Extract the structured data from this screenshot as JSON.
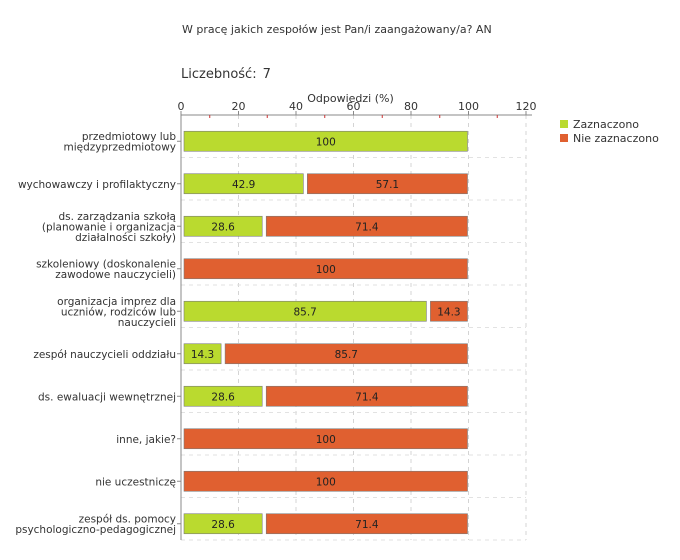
{
  "header": {
    "title": "W pracę jakich zespołów jest Pan/i zaangażowany/a? AN",
    "count_label": "Liczebność:",
    "count_value": "7"
  },
  "chart_data": {
    "type": "bar",
    "orientation": "horizontal",
    "stacked": true,
    "xlabel": "Odpowiedzi (%)",
    "xlim": [
      0,
      120
    ],
    "xticks": [
      0,
      20,
      40,
      60,
      80,
      100,
      120
    ],
    "grid": true,
    "legend_position": "top-right",
    "categories": [
      "przedmiotowy lub\nmiędzyprzedmiotowy",
      "wychowawczy i profilaktyczny",
      "ds. zarządzania szkołą\n(planowanie i organizacja\ndziałalności szkoły)",
      "szkoleniowy (doskonalenie\nzawodowe nauczycieli)",
      "organizacja imprez dla\nuczniów, rodziców lub\nnauczycieli",
      "zespół nauczycieli oddziału",
      "ds. ewaluacji wewnętrznej",
      "inne, jakie?",
      "nie uczestniczę",
      "zespół ds. pomocy\npsychologiczno-pedagogicznej"
    ],
    "series": [
      {
        "name": "Zaznaczono",
        "color": "#bada2f",
        "values": [
          100,
          42.9,
          28.6,
          0,
          85.7,
          14.3,
          28.6,
          0,
          0,
          28.6
        ]
      },
      {
        "name": "Nie zaznaczono",
        "color": "#e06030",
        "values": [
          0,
          57.1,
          71.4,
          100,
          14.3,
          85.7,
          71.4,
          100,
          100,
          71.4
        ]
      }
    ]
  }
}
